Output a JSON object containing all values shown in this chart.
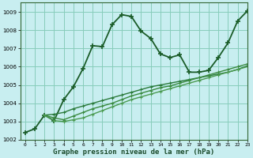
{
  "bg_color": "#c8eef0",
  "grid_color": "#88ccbb",
  "xlabel": "Graphe pression niveau de la mer (hPa)",
  "ylim": [
    1002,
    1009.5
  ],
  "xlim": [
    -0.5,
    23
  ],
  "yticks": [
    1002,
    1003,
    1004,
    1005,
    1006,
    1007,
    1008,
    1009
  ],
  "xticks": [
    0,
    1,
    2,
    3,
    4,
    5,
    6,
    7,
    8,
    9,
    10,
    11,
    12,
    13,
    14,
    15,
    16,
    17,
    18,
    19,
    20,
    21,
    22,
    23
  ],
  "series": [
    {
      "x": [
        0,
        1,
        2,
        3,
        4,
        5,
        6,
        7,
        8,
        9,
        10,
        11,
        12,
        13,
        14,
        15,
        16,
        17,
        18,
        19,
        20,
        21,
        22,
        23
      ],
      "y": [
        1002.4,
        1002.6,
        1003.35,
        1003.05,
        1004.2,
        1004.9,
        1005.9,
        1007.15,
        1007.1,
        1008.3,
        1008.85,
        1008.75,
        1007.95,
        1007.55,
        1006.7,
        1006.5,
        1006.65,
        1005.7,
        1005.7,
        1005.8,
        1006.5,
        1007.3,
        1008.5,
        1009.05
      ],
      "color": "#1a5c28",
      "lw": 1.3,
      "marker": "+",
      "ms": 5,
      "mew": 1.2
    },
    {
      "x": [
        2,
        3,
        4,
        5,
        6,
        7,
        8,
        9,
        10,
        11,
        12,
        13,
        14,
        15,
        16,
        17,
        18,
        19,
        20,
        21,
        22,
        23
      ],
      "y": [
        1003.35,
        1003.4,
        1003.5,
        1003.7,
        1003.85,
        1004.0,
        1004.15,
        1004.3,
        1004.45,
        1004.6,
        1004.75,
        1004.9,
        1005.0,
        1005.1,
        1005.2,
        1005.3,
        1005.4,
        1005.5,
        1005.6,
        1005.7,
        1005.85,
        1006.05
      ],
      "color": "#2a7a3a",
      "lw": 1.0,
      "marker": "+",
      "ms": 3,
      "mew": 0.8
    },
    {
      "x": [
        2,
        3,
        4,
        5,
        6,
        7,
        8,
        9,
        10,
        11,
        12,
        13,
        14,
        15,
        16,
        17,
        18,
        19,
        20,
        21,
        22,
        23
      ],
      "y": [
        1003.35,
        1003.2,
        1003.1,
        1003.3,
        1003.5,
        1003.7,
        1003.85,
        1004.0,
        1004.2,
        1004.4,
        1004.55,
        1004.7,
        1004.85,
        1004.95,
        1005.1,
        1005.25,
        1005.4,
        1005.55,
        1005.7,
        1005.85,
        1006.0,
        1006.15
      ],
      "color": "#3a8a40",
      "lw": 1.0,
      "marker": "+",
      "ms": 3,
      "mew": 0.8
    },
    {
      "x": [
        2,
        3,
        4,
        5,
        6,
        7,
        8,
        9,
        10,
        11,
        12,
        13,
        14,
        15,
        16,
        17,
        18,
        19,
        20,
        21,
        22,
        23
      ],
      "y": [
        1003.35,
        1003.05,
        1003.0,
        1003.1,
        1003.2,
        1003.4,
        1003.6,
        1003.8,
        1004.0,
        1004.2,
        1004.35,
        1004.5,
        1004.65,
        1004.8,
        1004.95,
        1005.1,
        1005.25,
        1005.4,
        1005.55,
        1005.7,
        1005.85,
        1006.0
      ],
      "color": "#4a9a50",
      "lw": 1.0,
      "marker": "+",
      "ms": 3,
      "mew": 0.8
    }
  ]
}
